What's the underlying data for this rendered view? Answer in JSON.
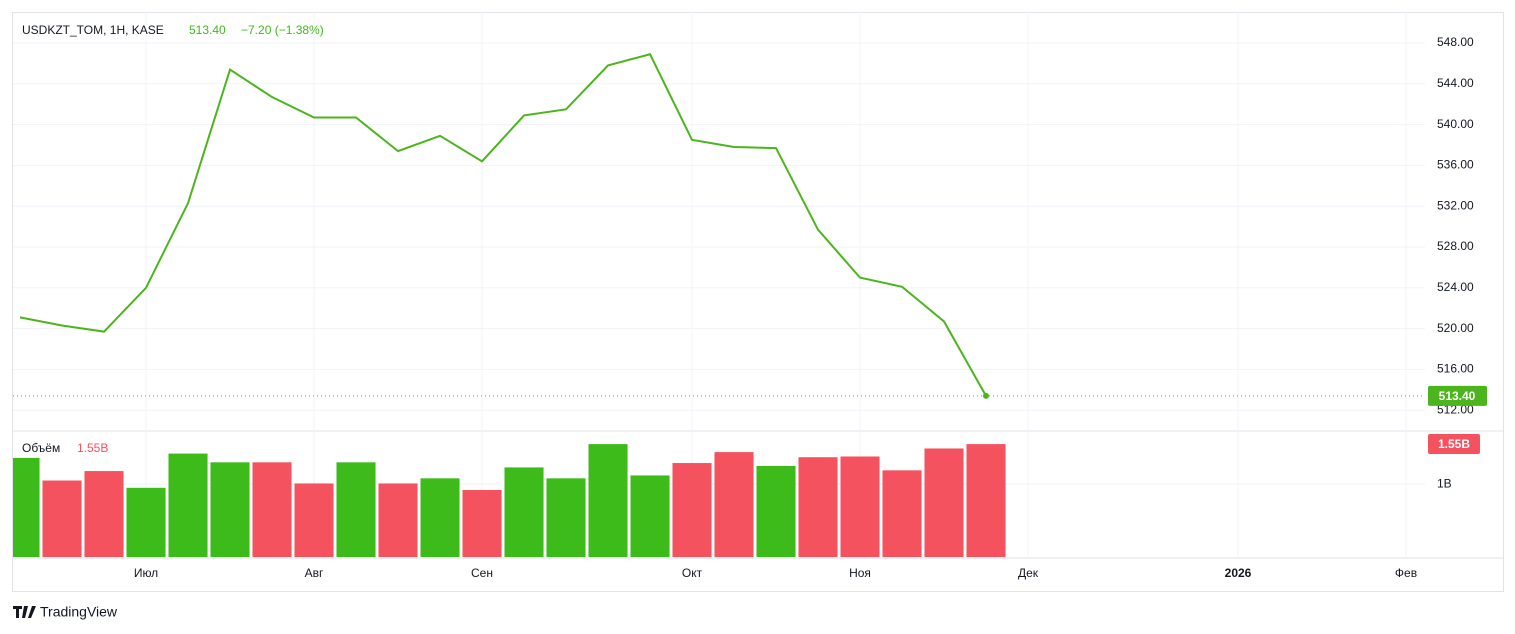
{
  "header": {
    "symbol": "USDKZT_TOM, 1H, KASE",
    "last": "513.40",
    "change": "−7.20 (−1.38%)"
  },
  "footer": {
    "brand": "TradingView"
  },
  "chart_data": [
    {
      "type": "line",
      "x": [
        0,
        1,
        2,
        3,
        4,
        5,
        6,
        7,
        8,
        9,
        10,
        11,
        12,
        13,
        14,
        15,
        16,
        17,
        18,
        19,
        20,
        21,
        22,
        23
      ],
      "values": [
        521.1,
        520.3,
        519.7,
        524.0,
        532.3,
        545.4,
        542.7,
        540.7,
        540.7,
        537.4,
        538.9,
        536.4,
        540.9,
        541.5,
        545.8,
        546.9,
        538.5,
        537.8,
        537.7,
        529.7,
        525.0,
        524.1,
        520.7,
        513.4
      ],
      "color": "#4cb51d",
      "xlim": [
        -0.167,
        33.452
      ],
      "xticks": [
        {
          "value": 3,
          "label": "Июл"
        },
        {
          "value": 7,
          "label": "Авг"
        },
        {
          "value": 11,
          "label": "Сен"
        },
        {
          "value": 16,
          "label": "Окт"
        },
        {
          "value": 20,
          "label": "Ноя"
        },
        {
          "value": 24,
          "label": "Дек"
        },
        {
          "value": 29,
          "label": "2026"
        },
        {
          "value": 33,
          "label": "Фев"
        }
      ],
      "ylim": [
        509.96,
        551.04
      ],
      "yticks": [
        {
          "value": 512,
          "label": "512.00"
        },
        {
          "value": 516,
          "label": "516.00"
        },
        {
          "value": 520,
          "label": "520.00"
        },
        {
          "value": 524,
          "label": "524.00"
        },
        {
          "value": 528,
          "label": "528.00"
        },
        {
          "value": 532,
          "label": "532.00"
        },
        {
          "value": 536,
          "label": "536.00"
        },
        {
          "value": 540,
          "label": "540.00"
        },
        {
          "value": 544,
          "label": "544.00"
        },
        {
          "value": 548,
          "label": "548.00"
        }
      ],
      "grid": true
    },
    {
      "type": "bar",
      "title": "Объём",
      "last_label": "1.55B",
      "x": [
        0,
        1,
        2,
        3,
        4,
        5,
        6,
        7,
        8,
        9,
        10,
        11,
        12,
        13,
        14,
        15,
        16,
        17,
        18,
        19,
        20,
        21,
        22,
        23
      ],
      "values": [
        1.36,
        1.05,
        1.18,
        0.95,
        1.42,
        1.3,
        1.3,
        1.01,
        1.3,
        1.01,
        1.08,
        0.92,
        1.23,
        1.08,
        1.55,
        1.12,
        1.29,
        1.44,
        1.25,
        1.37,
        1.38,
        1.19,
        1.49,
        1.55
      ],
      "colors": [
        "#3dbb1b",
        "#f5525f",
        "#f5525f",
        "#3dbb1b",
        "#3dbb1b",
        "#3dbb1b",
        "#f5525f",
        "#f5525f",
        "#3dbb1b",
        "#f5525f",
        "#3dbb1b",
        "#f5525f",
        "#3dbb1b",
        "#3dbb1b",
        "#3dbb1b",
        "#3dbb1b",
        "#f5525f",
        "#f5525f",
        "#3dbb1b",
        "#f5525f",
        "#f5525f",
        "#f5525f",
        "#f5525f",
        "#f5525f"
      ],
      "ylim": [
        0,
        1.73
      ],
      "yticks": [
        {
          "value": 1,
          "label": "1B"
        }
      ],
      "grid": true
    }
  ]
}
